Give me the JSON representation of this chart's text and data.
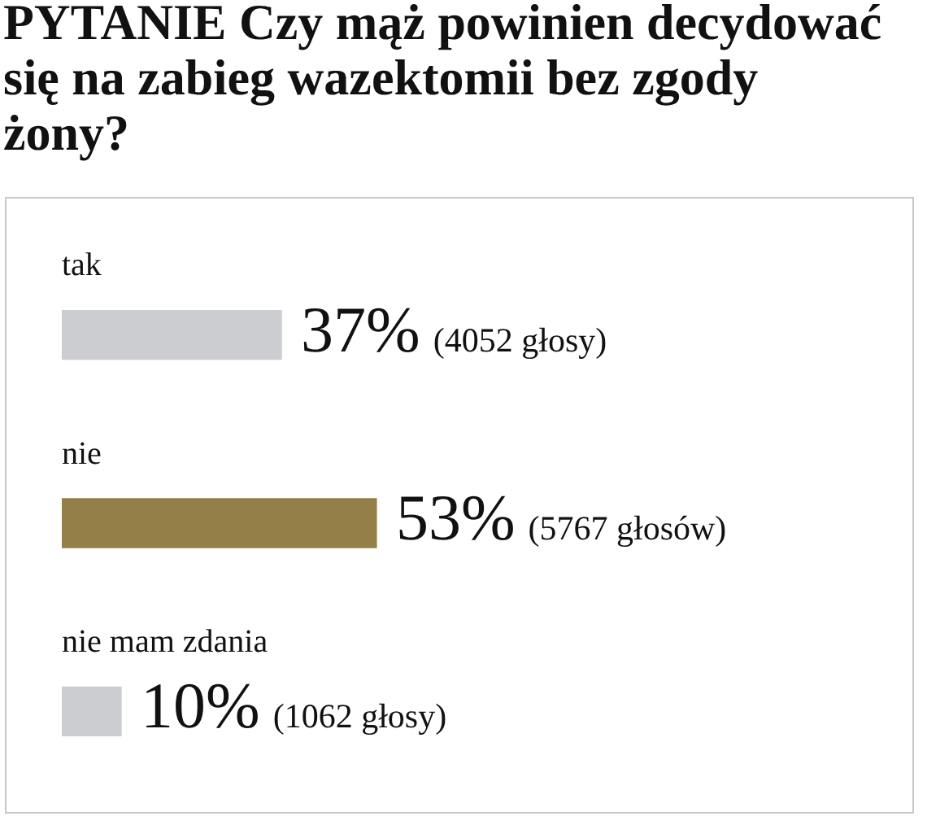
{
  "chart_data": {
    "type": "bar",
    "orientation": "horizontal",
    "title": "PYTANIE Czy mąż powinien decydować się na zabieg wazektomii bez zgody żony?",
    "categories": [
      "tak",
      "nie",
      "nie mam zdania"
    ],
    "values": [
      37,
      53,
      10
    ],
    "colors": [
      "#cbcdd0",
      "#937f47",
      "#cbcdd0"
    ],
    "value_labels": [
      "37%",
      "53%",
      "10%"
    ],
    "annotations": [
      "(4052 głosy)",
      "(5767 głosów)",
      "(1062 głosy)"
    ],
    "tick_labels": "y"
  }
}
